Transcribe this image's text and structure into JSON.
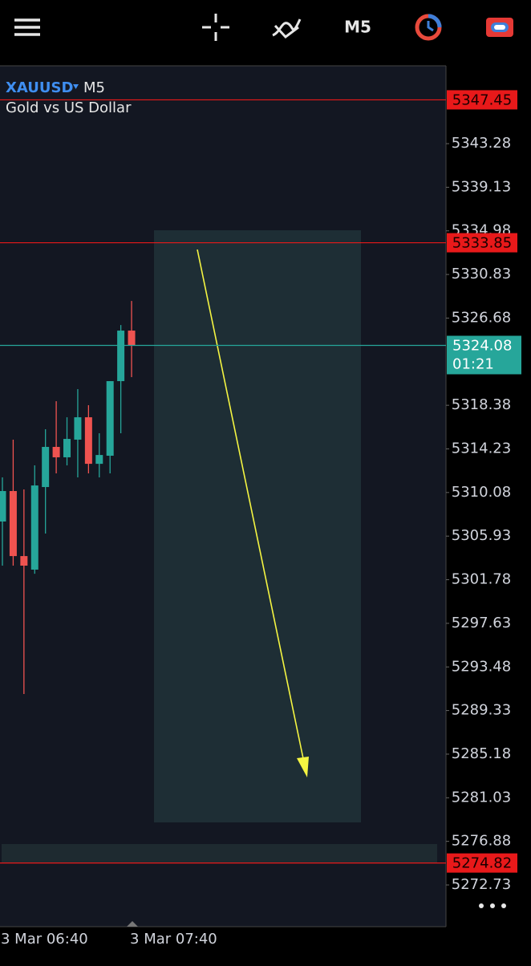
{
  "toolbar": {
    "timeframe": "M5"
  },
  "chart_data": {
    "type": "candlestick",
    "symbol": "XAUUSD",
    "timeframe": "M5",
    "subtitle": "Gold vs US Dollar",
    "categories": [
      "3 Mar 06:40",
      null,
      null,
      null,
      null,
      null,
      null,
      null,
      null,
      null,
      null,
      null,
      "3 Mar 07:40"
    ],
    "open": [
      5307.32,
      5310.22,
      5304.03,
      5302.74,
      5310.6,
      5314.42,
      5313.43,
      5315.11,
      5317.24,
      5312.81,
      5313.58,
      5320.68,
      5325.49
    ],
    "high": [
      5311.52,
      5315.11,
      5310.37,
      5312.66,
      5316.1,
      5318.77,
      5317.24,
      5319.92,
      5318.39,
      5315.72,
      5320.68,
      5326.02,
      5328.31
    ],
    "low": [
      5303.12,
      5303.12,
      5290.9,
      5302.35,
      5306.17,
      5311.9,
      5312.66,
      5311.52,
      5311.9,
      5311.52,
      5311.9,
      5315.72,
      5321.06
    ],
    "close": [
      5310.22,
      5304.03,
      5303.12,
      5310.75,
      5314.42,
      5313.43,
      5315.18,
      5317.24,
      5312.81,
      5313.65,
      5320.68,
      5325.49,
      5324.08
    ],
    "up_color": "#26a69a",
    "down_color": "#ef5350",
    "ylim": [
      5268.76,
      5350.69
    ],
    "yticks": [
      5343.28,
      5339.13,
      5334.98,
      5330.83,
      5326.68,
      5318.38,
      5314.23,
      5310.08,
      5305.93,
      5301.78,
      5297.63,
      5293.48,
      5289.33,
      5285.18,
      5281.03,
      5276.88,
      5272.73
    ],
    "price_lines": [
      {
        "value": 5347.45,
        "color": "#e8191a"
      },
      {
        "value": 5333.85,
        "color": "#e8191a"
      },
      {
        "value": 5274.82,
        "color": "#e8191a"
      }
    ],
    "current_price": {
      "value": 5324.08,
      "countdown": "01:21",
      "color": "#26a69a"
    }
  }
}
